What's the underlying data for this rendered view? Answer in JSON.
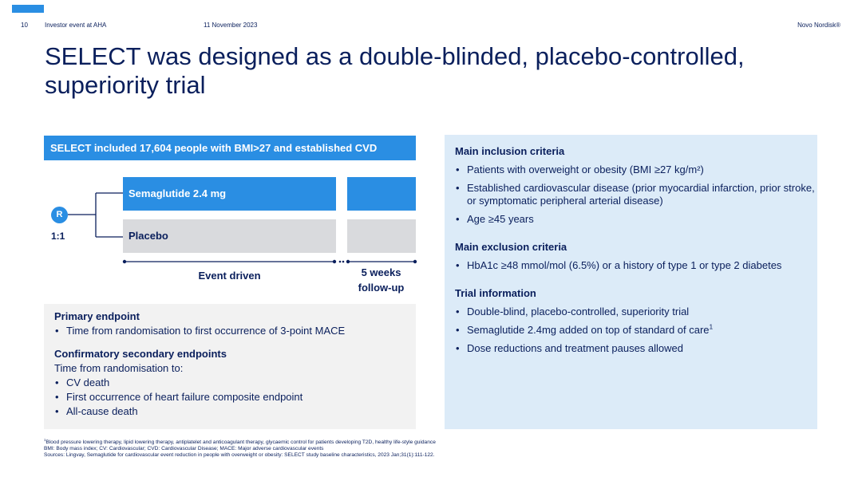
{
  "header": {
    "page_number": "10",
    "event": "Investor event at AHA",
    "date": "11 November 2023",
    "brand": "Novo Nordisk®"
  },
  "title": "SELECT was designed as a double-blinded, placebo-controlled, superiority trial",
  "diagram": {
    "header": "SELECT included 17,604 people with BMI>27 and established CVD",
    "randomisation": "R",
    "ratio": "1:1",
    "arm_1": "Semaglutide 2.4 mg",
    "arm_2": "Placebo",
    "phase_1": "Event driven",
    "phase_2_line1": "5 weeks",
    "phase_2_line2": "follow-up"
  },
  "endpoints": {
    "primary_heading": "Primary endpoint",
    "primary_items": [
      "Time from randomisation to first occurrence of 3-point MACE"
    ],
    "secondary_heading": "Confirmatory secondary endpoints",
    "secondary_intro": "Time from randomisation to:",
    "secondary_items": [
      "CV death",
      "First occurrence of heart failure composite endpoint",
      "All-cause death"
    ]
  },
  "criteria": {
    "inclusion_heading": "Main inclusion criteria",
    "inclusion_items": [
      "Patients with overweight or obesity (BMI ≥27 kg/m²)",
      "Established cardiovascular disease (prior myocardial infarction, prior stroke, or symptomatic peripheral arterial disease)",
      "Age ≥45 years"
    ],
    "exclusion_heading": "Main exclusion criteria",
    "exclusion_items": [
      "HbA1c ≥48 mmol/mol (6.5%) or a history of type 1 or type 2 diabetes"
    ],
    "trial_heading": "Trial information",
    "trial_items": [
      "Double-blind, placebo-controlled, superiority trial",
      "Semaglutide 2.4mg added on top of standard of care",
      "Dose reductions and treatment pauses allowed"
    ],
    "trial_item_2_sup": "1"
  },
  "footnotes": {
    "line1_sup": "1",
    "line1": "Blood pressure lowering therapy, lipid lowering therapy, antiplatelet and anticoagulant therapy, glycaemic control for patients developing T2D, healthy life-style guidance",
    "line2": "BMI: Body mass index; CV: Cardiovascular; CVD: Cardiovascular Disease; MACE: Major adverse cardiovascular events",
    "line3": "Sources: Lingvay, Semaglutide for cardiovascular event reduction in people with overweight or obesity: SELECT study baseline characteristics, 2023 Jan;31(1):111-122."
  },
  "colors": {
    "navy": "#0a1f5c",
    "blue": "#2a8ee3",
    "light_blue_panel": "#dcebf8",
    "grey_panel": "#f2f2f2",
    "placebo_grey": "#d9dadd"
  }
}
